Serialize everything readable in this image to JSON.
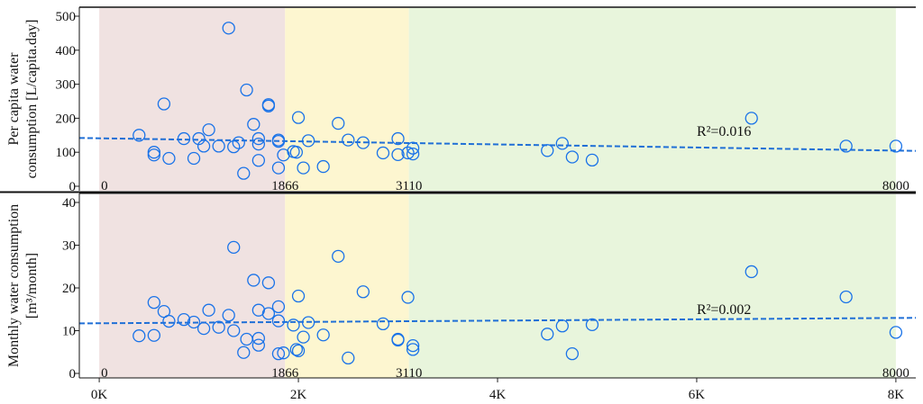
{
  "chart_data": [
    {
      "type": "scatter",
      "id": "top",
      "ylabel_lines": [
        "Per capita water",
        "consumption [L/capita.day]"
      ],
      "ylim": [
        0,
        500
      ],
      "yticks": [
        0,
        100,
        200,
        300,
        400,
        500
      ],
      "xlim": [
        -200,
        8200
      ],
      "bands": [
        {
          "from": 0,
          "to": 1866,
          "color": "#f0e2e1"
        },
        {
          "from": 1866,
          "to": 3110,
          "color": "#fdf6d0"
        },
        {
          "from": 3110,
          "to": 8000,
          "color": "#e8f5dc"
        }
      ],
      "band_labels": [
        "0",
        "1866",
        "3110",
        "8000"
      ],
      "trend": {
        "y_start": 142,
        "y_end": 104,
        "color": "#1f6fd6"
      },
      "annotation": "R²=0.016",
      "annotation_x": 6000,
      "annotation_y": 148,
      "points": [
        [
          400,
          150
        ],
        [
          550,
          100
        ],
        [
          550,
          92
        ],
        [
          650,
          242
        ],
        [
          700,
          82
        ],
        [
          850,
          140
        ],
        [
          950,
          82
        ],
        [
          1000,
          140
        ],
        [
          1050,
          118
        ],
        [
          1100,
          166
        ],
        [
          1200,
          118
        ],
        [
          1300,
          465
        ],
        [
          1350,
          116
        ],
        [
          1400,
          128
        ],
        [
          1450,
          38
        ],
        [
          1480,
          283
        ],
        [
          1550,
          182
        ],
        [
          1600,
          140
        ],
        [
          1600,
          124
        ],
        [
          1600,
          76
        ],
        [
          1700,
          240
        ],
        [
          1700,
          236
        ],
        [
          1800,
          136
        ],
        [
          1800,
          132
        ],
        [
          1800,
          54
        ],
        [
          1850,
          92
        ],
        [
          1950,
          102
        ],
        [
          1980,
          100
        ],
        [
          2000,
          202
        ],
        [
          2050,
          54
        ],
        [
          2100,
          134
        ],
        [
          2250,
          58
        ],
        [
          2400,
          185
        ],
        [
          2500,
          136
        ],
        [
          2650,
          128
        ],
        [
          2850,
          98
        ],
        [
          3000,
          140
        ],
        [
          3000,
          93
        ],
        [
          3100,
          98
        ],
        [
          3150,
          112
        ],
        [
          3150,
          95
        ],
        [
          4500,
          105
        ],
        [
          4650,
          126
        ],
        [
          4750,
          86
        ],
        [
          4950,
          77
        ],
        [
          6550,
          200
        ],
        [
          7500,
          118
        ],
        [
          8000,
          118
        ]
      ]
    },
    {
      "type": "scatter",
      "id": "bottom",
      "ylabel_lines": [
        "Monthly water consumption",
        "[m³/month]"
      ],
      "ylim": [
        0,
        40
      ],
      "yticks": [
        0,
        10,
        20,
        30,
        40
      ],
      "xlim": [
        -200,
        8200
      ],
      "xticks": [
        0,
        2000,
        4000,
        6000,
        8000
      ],
      "xtick_labels": [
        "0K",
        "2K",
        "4K",
        "6K",
        "8K"
      ],
      "bands": [
        {
          "from": 0,
          "to": 1866,
          "color": "#f0e2e1"
        },
        {
          "from": 1866,
          "to": 3110,
          "color": "#fdf6d0"
        },
        {
          "from": 3110,
          "to": 8000,
          "color": "#e8f5dc"
        }
      ],
      "band_labels": [
        "0",
        "1866",
        "3110",
        "8000"
      ],
      "trend": {
        "y_start": 11.7,
        "y_end": 13.0,
        "color": "#1f6fd6"
      },
      "annotation": "R²=0.002",
      "annotation_x": 6000,
      "annotation_y": 13.9,
      "points": [
        [
          400,
          8.8
        ],
        [
          550,
          16.6
        ],
        [
          550,
          8.9
        ],
        [
          650,
          14.5
        ],
        [
          700,
          12.2
        ],
        [
          850,
          12.6
        ],
        [
          950,
          12.0
        ],
        [
          1050,
          10.5
        ],
        [
          1100,
          14.8
        ],
        [
          1200,
          10.8
        ],
        [
          1300,
          13.6
        ],
        [
          1350,
          29.5
        ],
        [
          1350,
          10.0
        ],
        [
          1450,
          4.9
        ],
        [
          1480,
          8.0
        ],
        [
          1550,
          21.8
        ],
        [
          1600,
          14.8
        ],
        [
          1600,
          8.2
        ],
        [
          1600,
          6.6
        ],
        [
          1700,
          21.2
        ],
        [
          1700,
          14.0
        ],
        [
          1800,
          15.6
        ],
        [
          1800,
          12.3
        ],
        [
          1800,
          4.6
        ],
        [
          1850,
          4.8
        ],
        [
          1950,
          11.3
        ],
        [
          1980,
          5.6
        ],
        [
          2000,
          18.1
        ],
        [
          2000,
          5.3
        ],
        [
          2050,
          8.5
        ],
        [
          2100,
          11.9
        ],
        [
          2250,
          9.0
        ],
        [
          2400,
          27.4
        ],
        [
          2500,
          3.6
        ],
        [
          2650,
          19.1
        ],
        [
          2850,
          11.6
        ],
        [
          3000,
          8.0
        ],
        [
          3000,
          7.8
        ],
        [
          3100,
          17.8
        ],
        [
          3150,
          6.5
        ],
        [
          3150,
          5.6
        ],
        [
          4500,
          9.2
        ],
        [
          4650,
          11.1
        ],
        [
          4750,
          4.6
        ],
        [
          4950,
          11.4
        ],
        [
          6550,
          23.8
        ],
        [
          7500,
          17.9
        ],
        [
          8000,
          9.6
        ]
      ]
    }
  ]
}
